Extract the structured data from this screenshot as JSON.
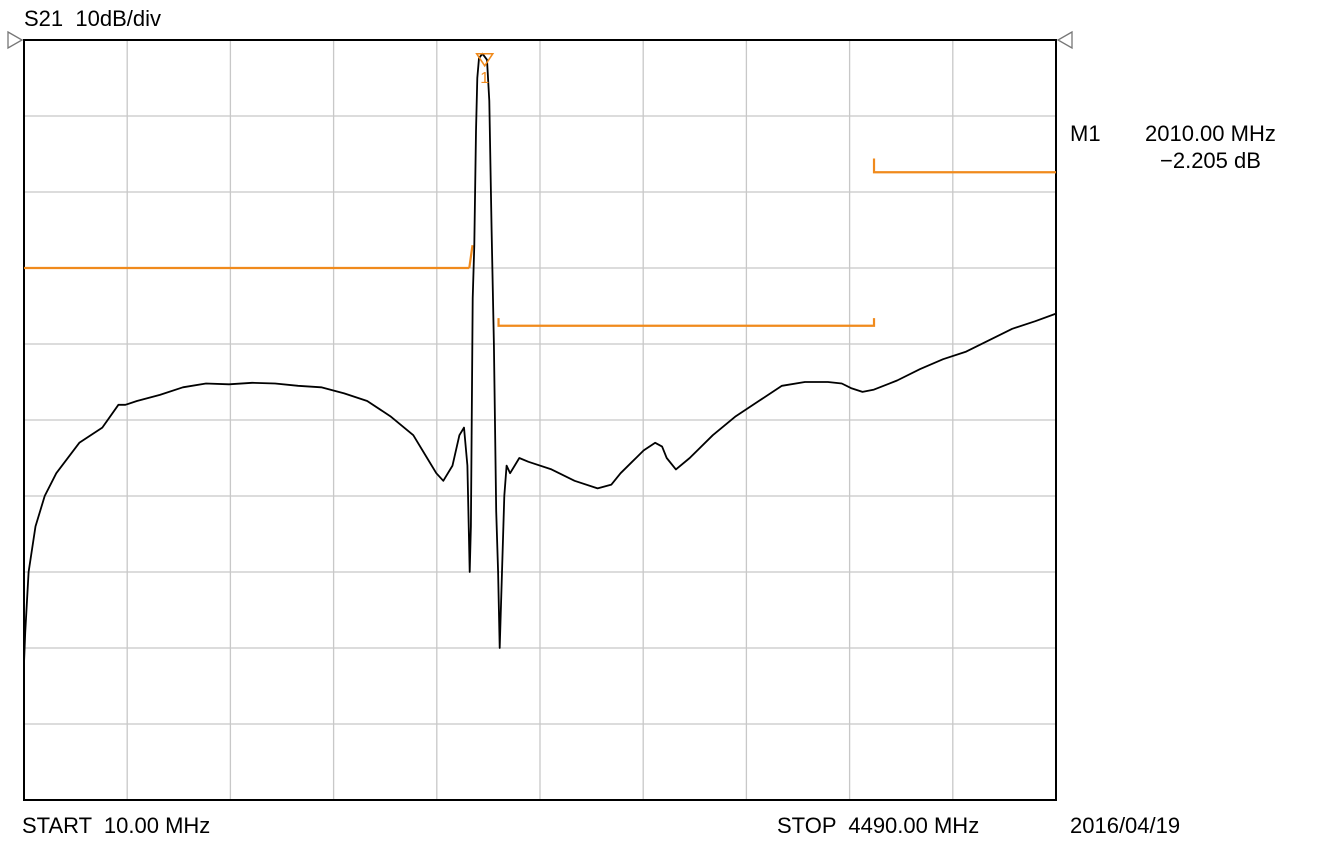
{
  "header": {
    "trace_label": "S21",
    "scale_label": "10dB/div"
  },
  "footer": {
    "start_label": "START",
    "start_value": "10.00 MHz",
    "stop_label": "STOP",
    "stop_value": "4490.00 MHz",
    "date": "2016/04/19"
  },
  "marker": {
    "name": "M1",
    "freq": "2010.00 MHz",
    "value": "−2.205 dB",
    "index_label": "1"
  },
  "colors": {
    "trace": "#000000",
    "limit": "#f08a1c",
    "grid": "#c8c8c8",
    "frame": "#000000"
  },
  "chart_data": {
    "type": "line",
    "xlabel": "",
    "ylabel": "",
    "grid": true,
    "x_divisions": 10,
    "y_divisions": 10,
    "xlim": [
      10,
      4490
    ],
    "ylim": [
      -100,
      0
    ],
    "y_scale_db_per_div": 10,
    "series": [
      {
        "points": [
          [
            10,
            -82
          ],
          [
            15,
            -78
          ],
          [
            30,
            -70
          ],
          [
            60,
            -64
          ],
          [
            100,
            -60
          ],
          [
            150,
            -57
          ],
          [
            250,
            -53
          ],
          [
            350,
            -51
          ],
          [
            420,
            -48
          ],
          [
            450,
            -48
          ],
          [
            500,
            -47.5
          ],
          [
            600,
            -46.7
          ],
          [
            700,
            -45.7
          ],
          [
            800,
            -45.2
          ],
          [
            900,
            -45.3
          ],
          [
            1000,
            -45.1
          ],
          [
            1100,
            -45.2
          ],
          [
            1200,
            -45.5
          ],
          [
            1300,
            -45.7
          ],
          [
            1400,
            -46.5
          ],
          [
            1500,
            -47.5
          ],
          [
            1600,
            -49.5
          ],
          [
            1700,
            -52
          ],
          [
            1760,
            -55
          ],
          [
            1800,
            -57
          ],
          [
            1830,
            -58
          ],
          [
            1870,
            -56
          ],
          [
            1900,
            -52
          ],
          [
            1920,
            -51
          ],
          [
            1935,
            -56
          ],
          [
            1945,
            -70
          ],
          [
            1950,
            -64
          ],
          [
            1958,
            -34
          ],
          [
            1965,
            -27
          ],
          [
            1972,
            -12
          ],
          [
            1978,
            -5
          ],
          [
            1985,
            -2.4
          ],
          [
            2000,
            -1.8
          ],
          [
            2010,
            -2.2
          ],
          [
            2020,
            -2.6
          ],
          [
            2030,
            -8
          ],
          [
            2040,
            -25
          ],
          [
            2050,
            -40
          ],
          [
            2060,
            -62
          ],
          [
            2068,
            -70
          ],
          [
            2075,
            -80
          ],
          [
            2085,
            -70
          ],
          [
            2095,
            -60
          ],
          [
            2105,
            -56
          ],
          [
            2120,
            -57
          ],
          [
            2140,
            -56
          ],
          [
            2160,
            -55
          ],
          [
            2200,
            -55.5
          ],
          [
            2300,
            -56.5
          ],
          [
            2400,
            -58
          ],
          [
            2500,
            -59
          ],
          [
            2560,
            -58.5
          ],
          [
            2600,
            -57
          ],
          [
            2650,
            -55.5
          ],
          [
            2700,
            -54
          ],
          [
            2750,
            -53
          ],
          [
            2780,
            -53.5
          ],
          [
            2800,
            -55
          ],
          [
            2840,
            -56.5
          ],
          [
            2900,
            -55
          ],
          [
            3000,
            -52
          ],
          [
            3100,
            -49.5
          ],
          [
            3200,
            -47.5
          ],
          [
            3300,
            -45.5
          ],
          [
            3400,
            -45
          ],
          [
            3500,
            -45
          ],
          [
            3560,
            -45.2
          ],
          [
            3600,
            -45.8
          ],
          [
            3650,
            -46.3
          ],
          [
            3700,
            -46
          ],
          [
            3800,
            -44.8
          ],
          [
            3900,
            -43.3
          ],
          [
            4000,
            -42
          ],
          [
            4100,
            -41
          ],
          [
            4200,
            -39.5
          ],
          [
            4300,
            -38
          ],
          [
            4400,
            -37
          ],
          [
            4490,
            -36
          ]
        ]
      }
    ],
    "limit_lines": [
      {
        "segments": [
          [
            [
              10,
              -30
            ],
            [
              1943,
              -30
            ]
          ],
          [
            [
              1943,
              -30
            ],
            [
              1957,
              -27
            ]
          ]
        ]
      },
      {
        "segments": [
          [
            [
              2070,
              -36.6
            ],
            [
              2070,
              -37.6
            ],
            [
              3700,
              -37.6
            ],
            [
              3700,
              -36.6
            ]
          ]
        ]
      },
      {
        "segments": [
          [
            [
              3700,
              -15.6
            ],
            [
              3700,
              -17.4
            ],
            [
              4490,
              -17.4
            ]
          ]
        ]
      }
    ],
    "marker_point": {
      "x": 2010,
      "y": -2.205
    }
  }
}
